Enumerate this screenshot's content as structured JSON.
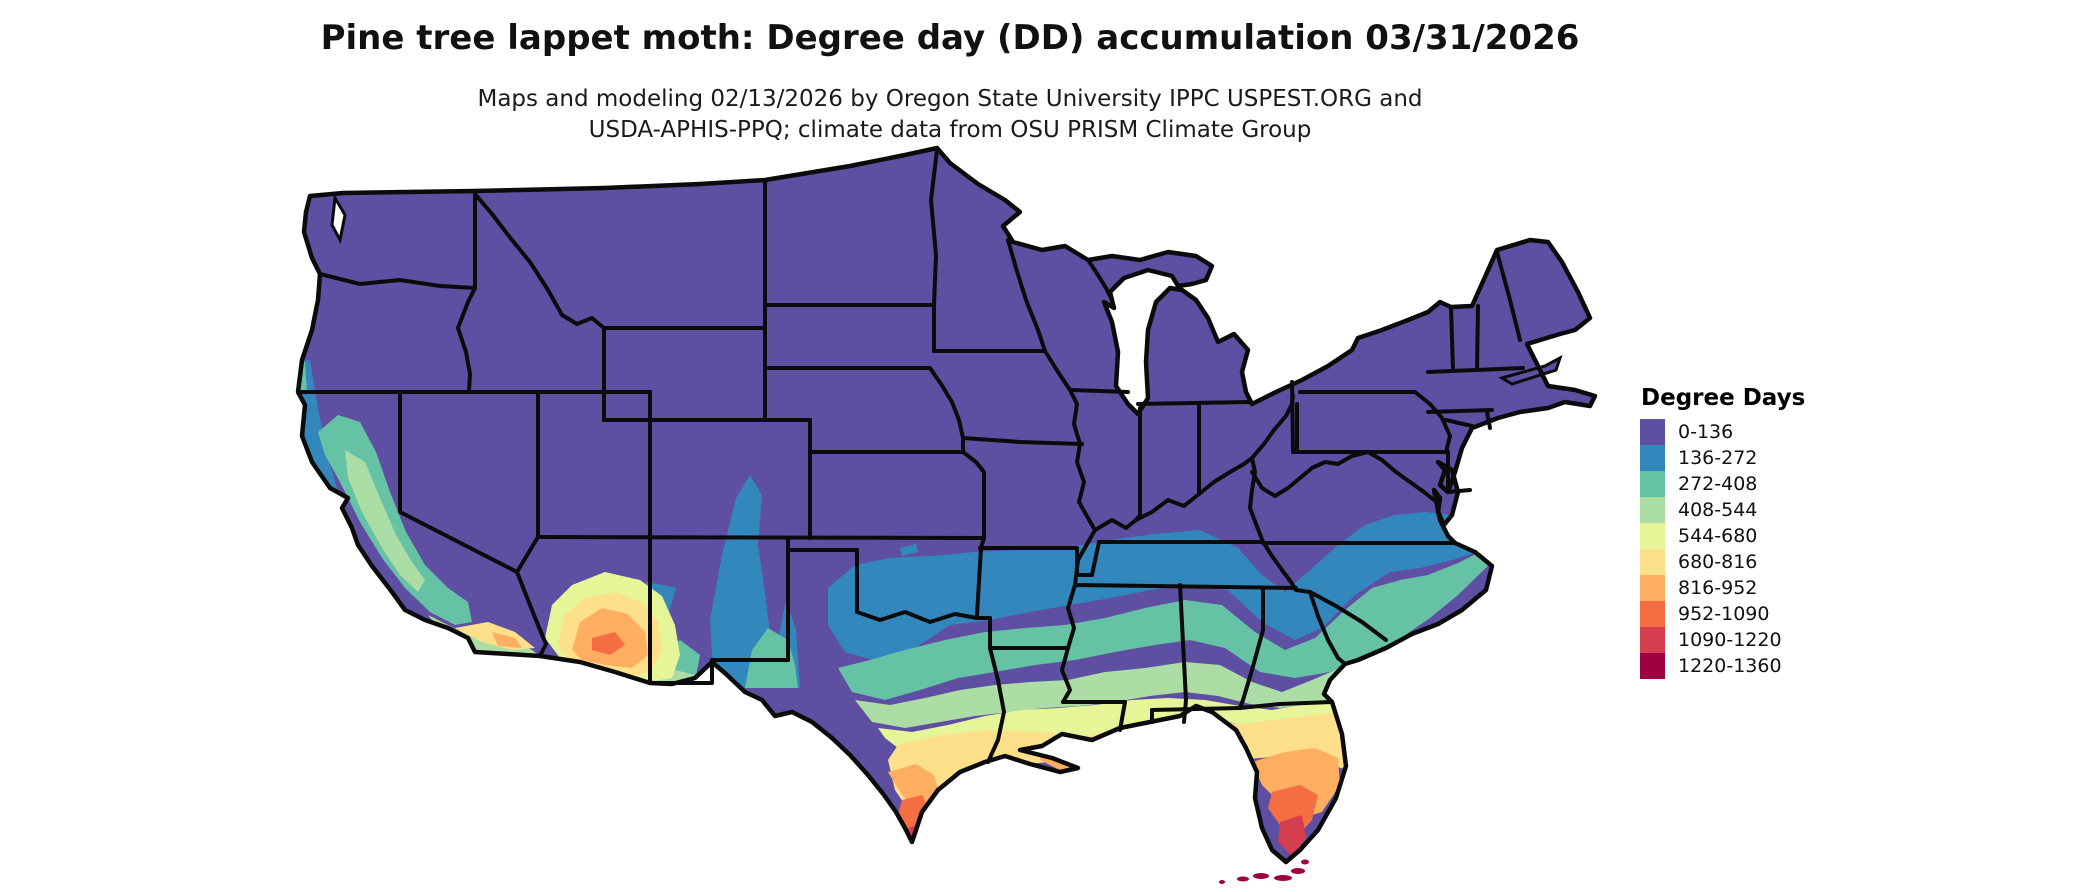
{
  "header": {
    "title": "Pine tree lappet moth: Degree day (DD) accumulation 03/31/2026",
    "subtitle_line1": "Maps and modeling 02/13/2026 by Oregon State University IPPC USPEST.ORG and",
    "subtitle_line2": "USDA-APHIS-PPQ; climate data from OSU PRISM Climate Group"
  },
  "legend": {
    "title": "Degree Days",
    "entries": [
      {
        "label": "0-136",
        "color": "#5E4FA2"
      },
      {
        "label": "136-272",
        "color": "#3288BD"
      },
      {
        "label": "272-408",
        "color": "#66C2A5"
      },
      {
        "label": "408-544",
        "color": "#ABDDA4"
      },
      {
        "label": "544-680",
        "color": "#E6F598"
      },
      {
        "label": "680-816",
        "color": "#FEE08B"
      },
      {
        "label": "816-952",
        "color": "#FDAE61"
      },
      {
        "label": "952-1090",
        "color": "#F46D43"
      },
      {
        "label": "1090-1220",
        "color": "#D53E4F"
      },
      {
        "label": "1220-1360",
        "color": "#9E0142"
      }
    ]
  },
  "chart_data": {
    "type": "heatmap",
    "subtype": "choropleth-degree-day-map",
    "region": "Contiguous United States",
    "title": "Pine tree lappet moth: Degree day (DD) accumulation 03/31/2026",
    "legend_title": "Degree Days",
    "classes": [
      {
        "range": "0-136",
        "color": "#5E4FA2",
        "where": "Pacific Northwest, Rockies, Great Basin, Plains, Midwest, Northeast (most of northern US)"
      },
      {
        "range": "136-272",
        "color": "#3288BD",
        "where": "band across northern Texas, Oklahoma, Arkansas, Tennessee, Virginia/North Carolina; CA coast; NM valleys"
      },
      {
        "range": "272-408",
        "color": "#66C2A5",
        "where": "central Oklahoma/Arkansas, northern MS/AL/GA, Carolinas coast, CA central valley"
      },
      {
        "range": "408-544",
        "color": "#ABDDA4",
        "where": "central Texas, southern GA/AL/MS, CA valley core"
      },
      {
        "range": "544-680",
        "color": "#E6F598",
        "where": "south-central Texas, Gulf inland strip, north Florida, Arizona deserts"
      },
      {
        "range": "680-816",
        "color": "#FEE08B",
        "where": "Gulf coast, Louisiana coast, north-central Florida, south Texas, SW Arizona"
      },
      {
        "range": "816-952",
        "color": "#FDAE61",
        "where": "south Texas, central Florida, Phoenix area, SE California spots"
      },
      {
        "range": "952-1090",
        "color": "#F46D43",
        "where": "lower Rio Grande Texas, south Florida"
      },
      {
        "range": "1090-1220",
        "color": "#D53E4F",
        "where": "southern tip of Florida"
      },
      {
        "range": "1220-1360",
        "color": "#9E0142",
        "where": "Florida Keys"
      }
    ]
  }
}
